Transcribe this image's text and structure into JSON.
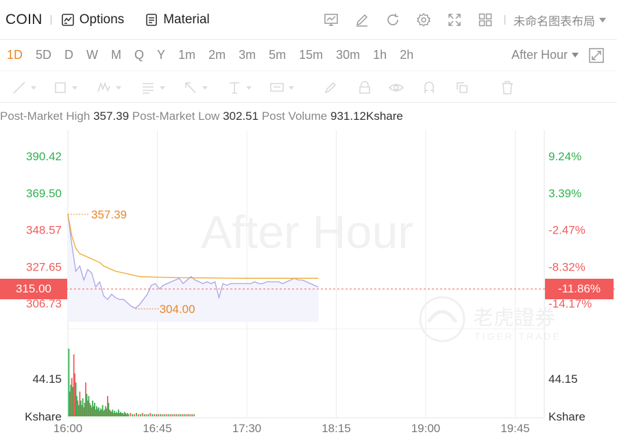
{
  "header": {
    "symbol": "COIN",
    "options_label": "Options",
    "material_label": "Material",
    "layout_name": "未命名图表布局",
    "icons": [
      "chart-settings-icon",
      "edit-icon",
      "refresh-icon",
      "gear-icon",
      "fullscreen-icon",
      "grid-layout-icon"
    ]
  },
  "periods": [
    "1D",
    "5D",
    "D",
    "W",
    "M",
    "Q",
    "Y",
    "1m",
    "2m",
    "3m",
    "5m",
    "15m",
    "30m",
    "1h",
    "2h"
  ],
  "active_period": "1D",
  "session_select": "After Hour",
  "drawing_tools": [
    "line-tool-icon",
    "rectangle-tool-icon",
    "wave-tool-icon",
    "fib-tool-icon",
    "arrow-tool-icon",
    "text-tool-icon",
    "price-label-tool-icon",
    "brush-icon",
    "lock-icon",
    "eye-icon",
    "magnet-icon",
    "copy-icon",
    "trash-icon"
  ],
  "stats": {
    "high_label": "Post-Market High",
    "high_value": "357.39",
    "low_label": "Post-Market Low",
    "low_value": "302.51",
    "volume_label": "Post Volume",
    "volume_value": "931.12Kshare"
  },
  "watermark": "After Hour",
  "brand": {
    "cn": "老虎證券",
    "en": "TIGER TRADE"
  },
  "colors": {
    "up": "#2fb14f",
    "down": "#f25b5b",
    "accent": "#e8862a",
    "price_line": "#a8a4e8",
    "avg_line": "#f0a830"
  },
  "chart_data": {
    "type": "line",
    "x_ticks": [
      "16:00",
      "16:45",
      "17:30",
      "18:15",
      "19:00",
      "19:45"
    ],
    "y_ticks": [
      {
        "price": "390.42",
        "pct": "9.24%",
        "dir": "up"
      },
      {
        "price": "369.50",
        "pct": "3.39%",
        "dir": "up"
      },
      {
        "price": "348.57",
        "pct": "-2.47%",
        "dir": "down"
      },
      {
        "price": "327.65",
        "pct": "-8.32%",
        "dir": "down"
      },
      {
        "price": "306.73",
        "pct": "-14.17%",
        "dir": "down"
      }
    ],
    "current_price": "315.00",
    "current_pct": "-11.86%",
    "high_marker": "357.39",
    "low_marker": "304.00",
    "volume_label_value": "44.15",
    "volume_unit": "Kshare",
    "price_series": [
      [
        0,
        357.4
      ],
      [
        2,
        340
      ],
      [
        4,
        325
      ],
      [
        6,
        328
      ],
      [
        8,
        320
      ],
      [
        10,
        326
      ],
      [
        12,
        324
      ],
      [
        14,
        316
      ],
      [
        16,
        319
      ],
      [
        18,
        311
      ],
      [
        20,
        309
      ],
      [
        22,
        312
      ],
      [
        24,
        310
      ],
      [
        26,
        309
      ],
      [
        28,
        309
      ],
      [
        30,
        307
      ],
      [
        32,
        305
      ],
      [
        34,
        304
      ],
      [
        36,
        306
      ],
      [
        38,
        309
      ],
      [
        40,
        312
      ],
      [
        42,
        317
      ],
      [
        44,
        318
      ],
      [
        46,
        315
      ],
      [
        48,
        317
      ],
      [
        50,
        318
      ],
      [
        52,
        319
      ],
      [
        54,
        320
      ],
      [
        56,
        321
      ],
      [
        58,
        318
      ],
      [
        60,
        320
      ],
      [
        62,
        322
      ],
      [
        64,
        320
      ],
      [
        66,
        319
      ],
      [
        68,
        318
      ],
      [
        70,
        319
      ],
      [
        72,
        318
      ],
      [
        74,
        319
      ],
      [
        76,
        310
      ],
      [
        78,
        318
      ],
      [
        80,
        317
      ],
      [
        82,
        318
      ],
      [
        84,
        318
      ],
      [
        86,
        318
      ],
      [
        88,
        318
      ],
      [
        90,
        318
      ],
      [
        92,
        318
      ],
      [
        94,
        319
      ],
      [
        96,
        318
      ],
      [
        98,
        318
      ],
      [
        100,
        319
      ],
      [
        102,
        319
      ],
      [
        104,
        319
      ],
      [
        106,
        319
      ],
      [
        108,
        318
      ],
      [
        110,
        319
      ],
      [
        112,
        320
      ],
      [
        114,
        321
      ],
      [
        116,
        320
      ],
      [
        118,
        320
      ],
      [
        120,
        319
      ],
      [
        122,
        318
      ],
      [
        124,
        317
      ],
      [
        126,
        316
      ]
    ],
    "avg_series": [
      [
        0,
        357.4
      ],
      [
        2,
        345
      ],
      [
        4,
        338
      ],
      [
        6,
        335
      ],
      [
        8,
        334
      ],
      [
        10,
        333
      ],
      [
        12,
        332
      ],
      [
        14,
        331
      ],
      [
        16,
        330
      ],
      [
        18,
        328
      ],
      [
        20,
        327
      ],
      [
        22,
        326
      ],
      [
        24,
        325
      ],
      [
        26,
        324.5
      ],
      [
        28,
        324
      ],
      [
        30,
        323.5
      ],
      [
        32,
        323
      ],
      [
        34,
        322.5
      ],
      [
        36,
        322
      ],
      [
        40,
        321.8
      ],
      [
        50,
        321.5
      ],
      [
        60,
        321.3
      ],
      [
        70,
        321.2
      ],
      [
        80,
        321.1
      ],
      [
        90,
        321
      ],
      [
        100,
        321
      ],
      [
        110,
        321
      ],
      [
        120,
        321
      ],
      [
        126,
        321
      ]
    ],
    "volume_bars": [
      [
        0,
        60,
        "up"
      ],
      [
        1,
        22,
        "down"
      ],
      [
        2,
        28,
        "up"
      ],
      [
        3,
        34,
        "down"
      ],
      [
        4,
        26,
        "up"
      ],
      [
        5,
        55,
        "down"
      ],
      [
        6,
        38,
        "down"
      ],
      [
        7,
        30,
        "up"
      ],
      [
        8,
        18,
        "up"
      ],
      [
        9,
        14,
        "down"
      ],
      [
        10,
        10,
        "up"
      ],
      [
        11,
        22,
        "down"
      ],
      [
        12,
        14,
        "up"
      ],
      [
        13,
        10,
        "down"
      ],
      [
        14,
        16,
        "up"
      ],
      [
        15,
        8,
        "down"
      ],
      [
        16,
        12,
        "up"
      ],
      [
        17,
        30,
        "down"
      ],
      [
        18,
        20,
        "up"
      ],
      [
        19,
        14,
        "down"
      ],
      [
        20,
        18,
        "up"
      ],
      [
        21,
        12,
        "down"
      ],
      [
        22,
        10,
        "up"
      ],
      [
        23,
        8,
        "down"
      ],
      [
        24,
        14,
        "up"
      ],
      [
        25,
        9,
        "down"
      ],
      [
        26,
        12,
        "up"
      ],
      [
        27,
        6,
        "down"
      ],
      [
        28,
        9,
        "up"
      ],
      [
        29,
        7,
        "down"
      ],
      [
        30,
        8,
        "up"
      ],
      [
        31,
        5,
        "down"
      ],
      [
        32,
        7,
        "up"
      ],
      [
        33,
        6,
        "down"
      ],
      [
        34,
        10,
        "up"
      ],
      [
        35,
        5,
        "down"
      ],
      [
        36,
        6,
        "up"
      ],
      [
        37,
        9,
        "down"
      ],
      [
        38,
        7,
        "up"
      ],
      [
        39,
        18,
        "down"
      ],
      [
        40,
        12,
        "up"
      ],
      [
        41,
        6,
        "down"
      ],
      [
        42,
        5,
        "up"
      ],
      [
        43,
        4,
        "down"
      ],
      [
        44,
        6,
        "up"
      ],
      [
        45,
        3,
        "down"
      ],
      [
        46,
        5,
        "up"
      ],
      [
        47,
        3,
        "down"
      ],
      [
        48,
        4,
        "up"
      ],
      [
        49,
        3,
        "down"
      ],
      [
        50,
        6,
        "up"
      ],
      [
        51,
        3,
        "down"
      ],
      [
        52,
        4,
        "up"
      ],
      [
        53,
        3,
        "down"
      ],
      [
        54,
        3,
        "up"
      ],
      [
        55,
        2,
        "down"
      ],
      [
        56,
        4,
        "up"
      ],
      [
        57,
        3,
        "down"
      ],
      [
        58,
        2,
        "up"
      ],
      [
        59,
        3,
        "down"
      ],
      [
        60,
        2,
        "up"
      ],
      [
        62,
        3,
        "down"
      ],
      [
        64,
        2,
        "up"
      ],
      [
        66,
        2,
        "down"
      ],
      [
        68,
        3,
        "up"
      ],
      [
        70,
        2,
        "down"
      ],
      [
        72,
        2,
        "up"
      ],
      [
        74,
        3,
        "down"
      ],
      [
        76,
        2,
        "up"
      ],
      [
        78,
        2,
        "down"
      ],
      [
        80,
        2,
        "up"
      ],
      [
        82,
        3,
        "down"
      ],
      [
        84,
        2,
        "up"
      ],
      [
        86,
        2,
        "down"
      ],
      [
        88,
        2,
        "up"
      ],
      [
        90,
        2,
        "down"
      ],
      [
        92,
        2,
        "up"
      ],
      [
        94,
        2,
        "down"
      ],
      [
        96,
        2,
        "up"
      ],
      [
        98,
        2,
        "down"
      ],
      [
        100,
        2,
        "up"
      ],
      [
        102,
        2,
        "down"
      ],
      [
        104,
        2,
        "up"
      ],
      [
        106,
        2,
        "down"
      ],
      [
        108,
        2,
        "up"
      ],
      [
        110,
        2,
        "down"
      ],
      [
        112,
        2,
        "up"
      ],
      [
        114,
        2,
        "down"
      ],
      [
        116,
        2,
        "up"
      ],
      [
        118,
        2,
        "down"
      ],
      [
        120,
        2,
        "up"
      ],
      [
        122,
        2,
        "down"
      ],
      [
        124,
        2,
        "up"
      ],
      [
        126,
        2,
        "down"
      ]
    ]
  }
}
